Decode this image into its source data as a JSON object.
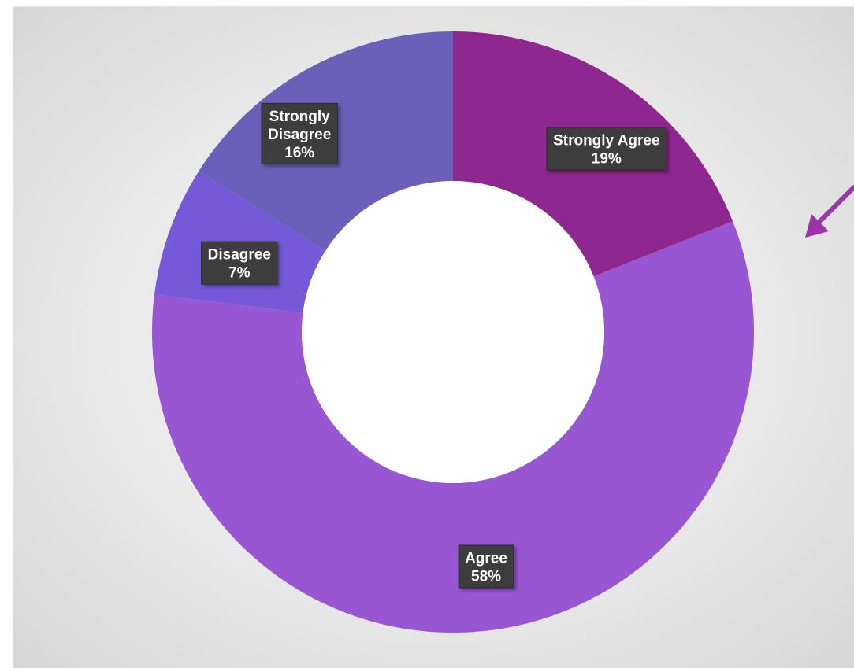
{
  "chart_data": {
    "type": "pie",
    "subtype": "doughnut",
    "title": "",
    "legend": "none",
    "categories": [
      "Strongly Agree",
      "Agree",
      "Disagree",
      "Strongly Disagree"
    ],
    "values": [
      19,
      58,
      7,
      16
    ],
    "unit": "%",
    "colors": [
      "#8e278f",
      "#9956d3",
      "#7659d9",
      "#6a5fb9"
    ],
    "data_labels": [
      {
        "category": "Strongly Agree",
        "lines": [
          "Strongly Agree",
          "19%"
        ]
      },
      {
        "category": "Agree",
        "lines": [
          "Agree",
          "58%"
        ]
      },
      {
        "category": "Disagree",
        "lines": [
          "Disagree",
          "7%"
        ]
      },
      {
        "category": "Strongly Disagree",
        "lines": [
          "Strongly",
          "Disagree",
          "16%"
        ]
      }
    ]
  },
  "decorations": {
    "arrow_icon": "arrow-down-left-icon",
    "arrow_color": "#9a34a8"
  }
}
